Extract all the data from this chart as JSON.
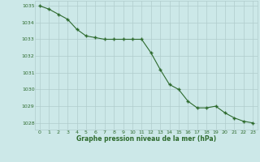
{
  "x": [
    0,
    1,
    2,
    3,
    4,
    5,
    6,
    7,
    8,
    9,
    10,
    11,
    12,
    13,
    14,
    15,
    16,
    17,
    18,
    19,
    20,
    21,
    22,
    23
  ],
  "y": [
    1035.0,
    1034.8,
    1034.5,
    1034.2,
    1033.6,
    1033.2,
    1033.1,
    1033.0,
    1033.0,
    1033.0,
    1033.0,
    1033.0,
    1032.2,
    1031.2,
    1030.3,
    1030.0,
    1029.3,
    1028.9,
    1028.9,
    1029.0,
    1028.6,
    1028.3,
    1028.1,
    1028.0
  ],
  "line_color": "#2d6a2d",
  "marker": "+",
  "marker_size": 3,
  "bg_color": "#cce8e8",
  "grid_color": "#b0cccc",
  "tick_color": "#2d6a2d",
  "label_color": "#2d6a2d",
  "xlabel": "Graphe pression niveau de la mer (hPa)",
  "ylim": [
    1027.6,
    1035.3
  ],
  "yticks": [
    1028,
    1029,
    1030,
    1031,
    1032,
    1033,
    1034,
    1035
  ],
  "xticks": [
    0,
    1,
    2,
    3,
    4,
    5,
    6,
    7,
    8,
    9,
    10,
    11,
    12,
    13,
    14,
    15,
    16,
    17,
    18,
    19,
    20,
    21,
    22,
    23
  ],
  "xlim": [
    -0.5,
    23.5
  ]
}
